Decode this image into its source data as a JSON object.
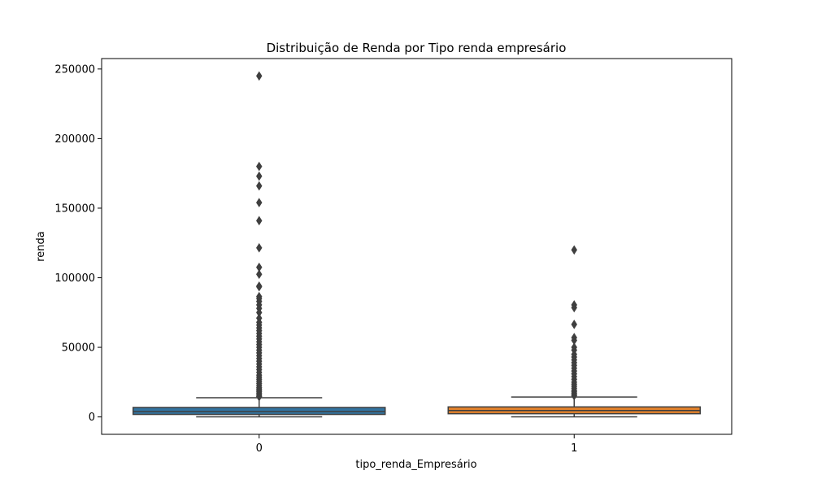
{
  "chart_data": {
    "type": "box",
    "title": "Distribuição de Renda por Tipo renda empresário",
    "xlabel": "tipo_renda_Empresário",
    "ylabel": "renda",
    "ylim": [
      -12500,
      257500
    ],
    "yticks": [
      0,
      50000,
      100000,
      150000,
      200000,
      250000
    ],
    "ytick_labels": [
      "0",
      "50000",
      "100000",
      "150000",
      "200000",
      "250000"
    ],
    "grid": false,
    "categories": [
      "0",
      "1"
    ],
    "series": [
      {
        "category": "0",
        "color": "#3274a1",
        "whisker_low": 100,
        "q1": 1800,
        "median": 3900,
        "q3": 6800,
        "whisker_high": 13800,
        "outliers": [
          245000,
          180000,
          173000,
          166000,
          154000,
          141000,
          121500,
          107500,
          102500,
          94000,
          93500,
          86500,
          85000,
          83000,
          80500,
          78000,
          75000,
          71000,
          68000,
          66000,
          64000,
          62000,
          60000,
          58000,
          56000,
          54000,
          52000,
          50000,
          48000,
          46000,
          44000,
          42000,
          40000,
          38000,
          36000,
          34000,
          32000,
          30000,
          28500,
          27000,
          25500,
          24000,
          22500,
          21000,
          20000,
          19000,
          18000,
          17000,
          16000,
          15000,
          14500
        ]
      },
      {
        "category": "1",
        "color": "#e1812c",
        "whisker_low": 100,
        "q1": 2300,
        "median": 4600,
        "q3": 7200,
        "whisker_high": 14300,
        "outliers": [
          120000,
          80500,
          78500,
          66500,
          57000,
          55000,
          50000,
          48000,
          45000,
          43000,
          41000,
          39000,
          37000,
          35000,
          33000,
          31000,
          29000,
          27000,
          25000,
          23500,
          22000,
          20500,
          19000,
          18000,
          17000,
          16000,
          15200
        ]
      }
    ]
  }
}
